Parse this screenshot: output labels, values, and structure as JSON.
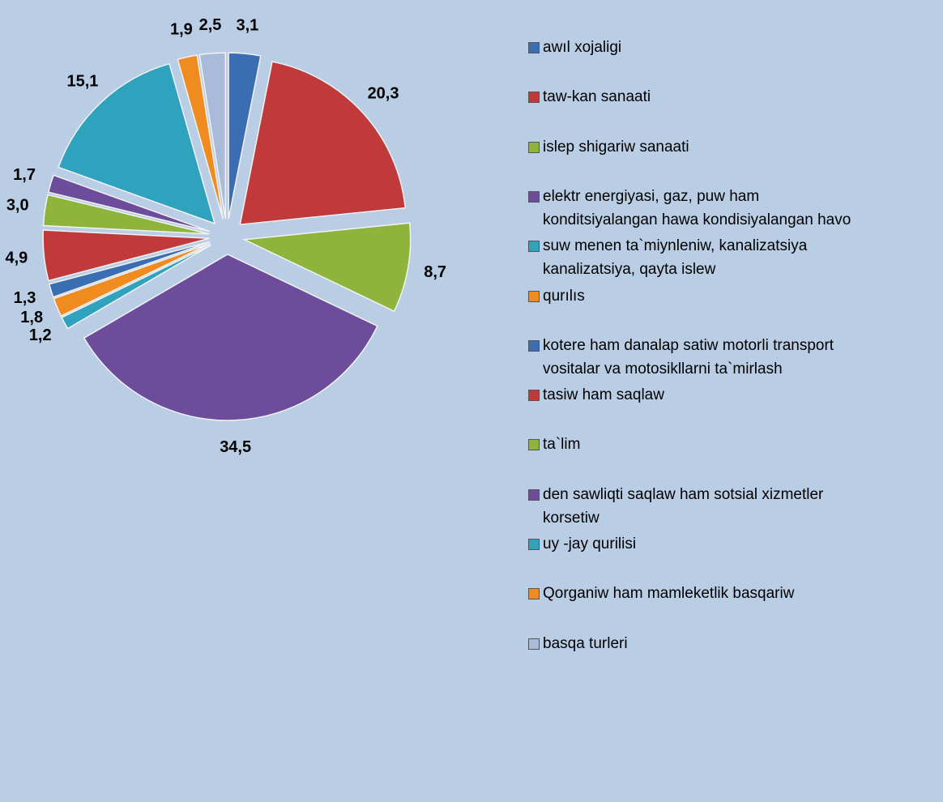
{
  "chart_data": {
    "type": "pie",
    "categories": [
      "awıl xojaligi",
      "taw-kan sanaati",
      "islep shigariw sanaati",
      "elektr energiyasi, gaz, puw ham\nkonditsiyalangan hawa kondisiyalangan havo",
      "suw menen ta`miynleniw, kanalizatsiya\nkanalizatsiya, qayta islew",
      "qurılıs",
      "kotere ham danalap satiw motorli transport\nvositalar va motosikllarni ta`mirlash",
      "tasiw ham saqlaw",
      "ta`lim",
      "den sawliqti saqlaw ham sotsial xizmetler\nkorsetiw",
      "uy -jay qurilisi",
      "Qorganiw ham mamleketlik basqariw",
      "basqa turleri"
    ],
    "values": [
      3.1,
      20.3,
      8.7,
      34.5,
      1.2,
      1.8,
      1.3,
      4.9,
      3.0,
      1.7,
      15.1,
      1.9,
      2.5
    ],
    "value_labels": [
      "3,1",
      "20,3",
      "8,7",
      "34,5",
      "1,2",
      "1,8",
      "1,3",
      "4,9",
      "3,0",
      "1,7",
      "15,1",
      "1,9",
      "2,5"
    ],
    "colors": [
      "#3b6db3",
      "#c0393b",
      "#8fb43c",
      "#6e4c9c",
      "#2fa2bd",
      "#ef8b1f",
      "#3b6db3",
      "#c0393b",
      "#8fb43c",
      "#6e4c9c",
      "#2fa2bd",
      "#ef8b1f",
      "#a9bbd9"
    ],
    "legend": "right"
  }
}
